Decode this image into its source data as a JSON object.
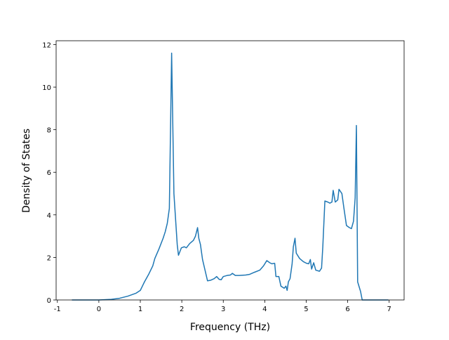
{
  "chart_data": {
    "type": "line",
    "x_label": "Frequency (THz)",
    "y_label": "Density of States",
    "x": [
      -0.65,
      0,
      0.3,
      0.5,
      0.7,
      0.9,
      1.0,
      1.05,
      1.1,
      1.2,
      1.3,
      1.35,
      1.45,
      1.55,
      1.6,
      1.65,
      1.7,
      1.755,
      1.81,
      1.89,
      1.92,
      1.99,
      2.06,
      2.11,
      2.19,
      2.28,
      2.33,
      2.38,
      2.41,
      2.45,
      2.5,
      2.62,
      2.7,
      2.78,
      2.84,
      2.9,
      2.95,
      3.0,
      3.09,
      3.17,
      3.22,
      3.29,
      3.38,
      3.54,
      3.63,
      3.75,
      3.88,
      3.97,
      4.05,
      4.12,
      4.17,
      4.24,
      4.27,
      4.34,
      4.39,
      4.47,
      4.51,
      4.54,
      4.57,
      4.61,
      4.66,
      4.69,
      4.73,
      4.76,
      4.84,
      4.93,
      5.01,
      5.06,
      5.1,
      5.13,
      5.18,
      5.23,
      5.32,
      5.37,
      5.4,
      5.45,
      5.52,
      5.57,
      5.62,
      5.65,
      5.7,
      5.76,
      5.79,
      5.86,
      5.91,
      5.94,
      5.97,
      6.04,
      6.09,
      6.14,
      6.18,
      6.21,
      6.24,
      6.31,
      6.35,
      6.98
    ],
    "series": [
      {
        "color": "#1f77b4",
        "values": [
          0,
          0,
          0.03,
          0.08,
          0.18,
          0.32,
          0.45,
          0.65,
          0.85,
          1.2,
          1.6,
          1.95,
          2.4,
          2.9,
          3.2,
          3.6,
          4.3,
          11.6,
          5.0,
          2.6,
          2.1,
          2.45,
          2.5,
          2.45,
          2.65,
          2.8,
          3.0,
          3.4,
          2.9,
          2.6,
          1.9,
          0.9,
          0.93,
          1.0,
          1.1,
          0.97,
          0.95,
          1.1,
          1.15,
          1.17,
          1.25,
          1.15,
          1.15,
          1.17,
          1.2,
          1.3,
          1.4,
          1.6,
          1.85,
          1.75,
          1.7,
          1.72,
          1.1,
          1.1,
          0.65,
          0.55,
          0.65,
          0.45,
          0.85,
          1.0,
          1.7,
          2.5,
          2.9,
          2.2,
          1.95,
          1.8,
          1.72,
          1.7,
          1.9,
          1.45,
          1.75,
          1.4,
          1.35,
          1.5,
          2.5,
          4.65,
          4.6,
          4.55,
          4.6,
          5.15,
          4.6,
          4.7,
          5.2,
          5.0,
          4.3,
          3.9,
          3.5,
          3.4,
          3.35,
          3.7,
          4.8,
          8.2,
          0.85,
          0.4,
          0,
          0
        ]
      }
    ],
    "xlim": [
      -1.03,
      7.36
    ],
    "ylim": [
      0,
      12.18
    ],
    "xticks": [
      -1,
      0,
      1,
      2,
      3,
      4,
      5,
      6,
      7
    ],
    "yticks": [
      0,
      2,
      4,
      6,
      8,
      10,
      12
    ]
  }
}
